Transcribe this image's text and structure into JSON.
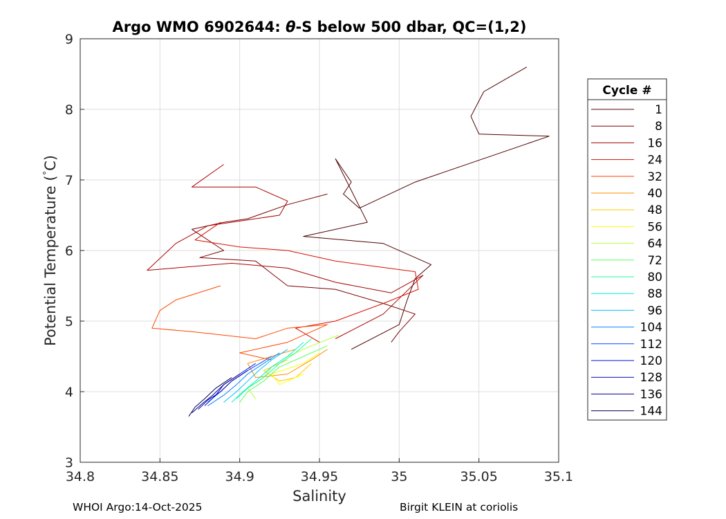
{
  "chart_data": {
    "type": "line",
    "title_prefix": "Argo WMO 6902644: ",
    "title_theta": "θ",
    "title_suffix": "-S below 500 dbar,  QC=(1,2)",
    "xlabel": "Salinity",
    "ylabel": "Potential Temperature (",
    "ylabel_degree": "°",
    "ylabel_unit": "C)",
    "xlim": [
      34.8,
      35.1
    ],
    "ylim": [
      3,
      9
    ],
    "xticks": [
      34.8,
      34.85,
      34.9,
      34.95,
      35,
      35.05,
      35.1
    ],
    "xtick_labels": [
      "34.8",
      "34.85",
      "34.9",
      "34.95",
      "35",
      "35.05",
      "35.1"
    ],
    "yticks": [
      3,
      4,
      5,
      6,
      7,
      8,
      9
    ],
    "ytick_labels": [
      "3",
      "4",
      "5",
      "6",
      "7",
      "8",
      "9"
    ],
    "grid": true,
    "legend": {
      "title": "Cycle #",
      "placement": "outside-right",
      "entries": [
        {
          "label": "1",
          "color": "#4d0000"
        },
        {
          "label": "8",
          "color": "#7a0000"
        },
        {
          "label": "16",
          "color": "#a80000"
        },
        {
          "label": "24",
          "color": "#d61000"
        },
        {
          "label": "32",
          "color": "#ff4600"
        },
        {
          "label": "40",
          "color": "#ff8c00"
        },
        {
          "label": "48",
          "color": "#ffc800"
        },
        {
          "label": "56",
          "color": "#ffff00"
        },
        {
          "label": "64",
          "color": "#b4ff32"
        },
        {
          "label": "72",
          "color": "#5aff5a"
        },
        {
          "label": "80",
          "color": "#1eff96"
        },
        {
          "label": "88",
          "color": "#00f0d2"
        },
        {
          "label": "96",
          "color": "#00c0ff"
        },
        {
          "label": "104",
          "color": "#0082ff"
        },
        {
          "label": "112",
          "color": "#0046ff"
        },
        {
          "label": "120",
          "color": "#0010e6"
        },
        {
          "label": "128",
          "color": "#0000b4"
        },
        {
          "label": "136",
          "color": "#000082"
        },
        {
          "label": "144",
          "color": "#000050"
        }
      ]
    },
    "series": [
      {
        "name": "1",
        "color": "#4d0000",
        "s": [
          35.08,
          35.053,
          35.045,
          35.05,
          35.094,
          35.01,
          34.975,
          34.965,
          34.97,
          34.96,
          34.98,
          34.94,
          34.99,
          35.02,
          35.01,
          35.005,
          35.0,
          34.97
        ],
        "t": [
          8.6,
          8.25,
          7.9,
          7.65,
          7.62,
          6.97,
          6.6,
          6.8,
          6.97,
          7.3,
          6.4,
          6.2,
          6.1,
          5.8,
          5.6,
          5.3,
          4.95,
          4.6
        ]
      },
      {
        "name": "8",
        "color": "#7a0000",
        "s": [
          34.955,
          34.93,
          34.905,
          34.89,
          34.87,
          34.89,
          34.875,
          34.91,
          34.93,
          34.96,
          34.99,
          35.01,
          35.0,
          34.995
        ],
        "t": [
          6.8,
          6.65,
          6.45,
          6.4,
          6.3,
          6.0,
          5.9,
          5.85,
          5.5,
          5.45,
          5.25,
          5.1,
          4.85,
          4.7
        ]
      },
      {
        "name": "16",
        "color": "#a80000",
        "s": [
          34.89,
          34.87,
          34.91,
          34.93,
          34.925,
          34.88,
          34.86,
          34.842,
          34.895,
          34.93,
          34.96,
          34.995,
          35.015,
          34.99,
          34.96
        ],
        "t": [
          7.22,
          6.9,
          6.9,
          6.7,
          6.5,
          6.35,
          6.1,
          5.72,
          5.82,
          5.75,
          5.55,
          5.4,
          5.65,
          5.1,
          4.75
        ]
      },
      {
        "name": "24",
        "color": "#d61000",
        "s": [
          34.888,
          34.872,
          34.9,
          34.93,
          34.96,
          35.01,
          35.012,
          34.99,
          34.96,
          34.935,
          34.95
        ],
        "t": [
          6.4,
          6.15,
          6.05,
          6.0,
          5.85,
          5.7,
          5.45,
          5.25,
          5.0,
          4.9,
          4.7
        ]
      },
      {
        "name": "32",
        "color": "#ff4600",
        "s": [
          34.888,
          34.86,
          34.85,
          34.845,
          34.87,
          34.91,
          34.93,
          34.955,
          34.93,
          34.9,
          34.92
        ],
        "t": [
          5.5,
          5.3,
          5.15,
          4.9,
          4.85,
          4.75,
          4.9,
          4.95,
          4.7,
          4.55,
          4.45
        ]
      },
      {
        "name": "40",
        "color": "#ff8c00",
        "s": [
          34.935,
          34.92,
          34.905,
          34.91,
          34.93,
          34.945,
          34.955
        ],
        "t": [
          4.6,
          4.5,
          4.4,
          4.2,
          4.25,
          4.45,
          4.6
        ]
      },
      {
        "name": "48",
        "color": "#ffc800",
        "s": [
          34.93,
          34.915,
          34.925,
          34.935,
          34.945
        ],
        "t": [
          4.45,
          4.3,
          4.15,
          4.2,
          4.4
        ]
      },
      {
        "name": "56",
        "color": "#ffff00",
        "s": [
          34.95,
          34.94,
          34.92,
          34.925,
          34.94
        ],
        "t": [
          4.55,
          4.4,
          4.25,
          4.1,
          4.25
        ]
      },
      {
        "name": "64",
        "color": "#b4ff32",
        "s": [
          34.962,
          34.945,
          34.93,
          34.92,
          34.915,
          34.905,
          34.91
        ],
        "t": [
          4.8,
          4.65,
          4.5,
          4.35,
          4.2,
          4.05,
          3.9
        ]
      },
      {
        "name": "72",
        "color": "#5aff5a",
        "s": [
          34.955,
          34.94,
          34.925,
          34.915,
          34.905,
          34.9
        ],
        "t": [
          4.65,
          4.5,
          4.35,
          4.15,
          4.0,
          3.85
        ]
      },
      {
        "name": "80",
        "color": "#1eff96",
        "s": [
          34.945,
          34.935,
          34.925,
          34.915,
          34.905,
          34.898
        ],
        "t": [
          4.75,
          4.55,
          4.4,
          4.2,
          4.05,
          3.9
        ]
      },
      {
        "name": "88",
        "color": "#00f0d2",
        "s": [
          34.94,
          34.93,
          34.92,
          34.91,
          34.902,
          34.895
        ],
        "t": [
          4.7,
          4.5,
          4.35,
          4.15,
          4.0,
          3.85
        ]
      },
      {
        "name": "96",
        "color": "#00c0ff",
        "s": [
          34.93,
          34.92,
          34.912,
          34.905,
          34.898,
          34.89
        ],
        "t": [
          4.6,
          4.45,
          4.3,
          4.15,
          4.0,
          3.85
        ]
      },
      {
        "name": "104",
        "color": "#0082ff",
        "s": [
          34.925,
          34.915,
          34.905,
          34.898,
          34.89,
          34.88
        ],
        "t": [
          4.55,
          4.4,
          4.25,
          4.1,
          3.95,
          3.8
        ]
      },
      {
        "name": "112",
        "color": "#0046ff",
        "s": [
          34.92,
          34.905,
          34.895,
          34.888,
          34.88
        ],
        "t": [
          4.5,
          4.3,
          4.15,
          4.0,
          3.85
        ]
      },
      {
        "name": "120",
        "color": "#0010e6",
        "s": [
          34.91,
          34.9,
          34.89,
          34.885,
          34.878
        ],
        "t": [
          4.4,
          4.25,
          4.1,
          3.95,
          3.8
        ]
      },
      {
        "name": "128",
        "color": "#0000b4",
        "s": [
          34.905,
          34.895,
          34.888,
          34.88,
          34.874
        ],
        "t": [
          4.3,
          4.15,
          4.0,
          3.88,
          3.75
        ]
      },
      {
        "name": "136",
        "color": "#000082",
        "s": [
          34.9,
          34.89,
          34.883,
          34.876,
          34.87
        ],
        "t": [
          4.25,
          4.1,
          3.95,
          3.82,
          3.7
        ]
      },
      {
        "name": "144",
        "color": "#000050",
        "s": [
          34.895,
          34.885,
          34.878,
          34.872,
          34.868
        ],
        "t": [
          4.2,
          4.05,
          3.9,
          3.78,
          3.65
        ]
      }
    ]
  },
  "footer": {
    "left": "WHOI Argo:14-Oct-2025",
    "right": "Birgit KLEIN at coriolis"
  }
}
